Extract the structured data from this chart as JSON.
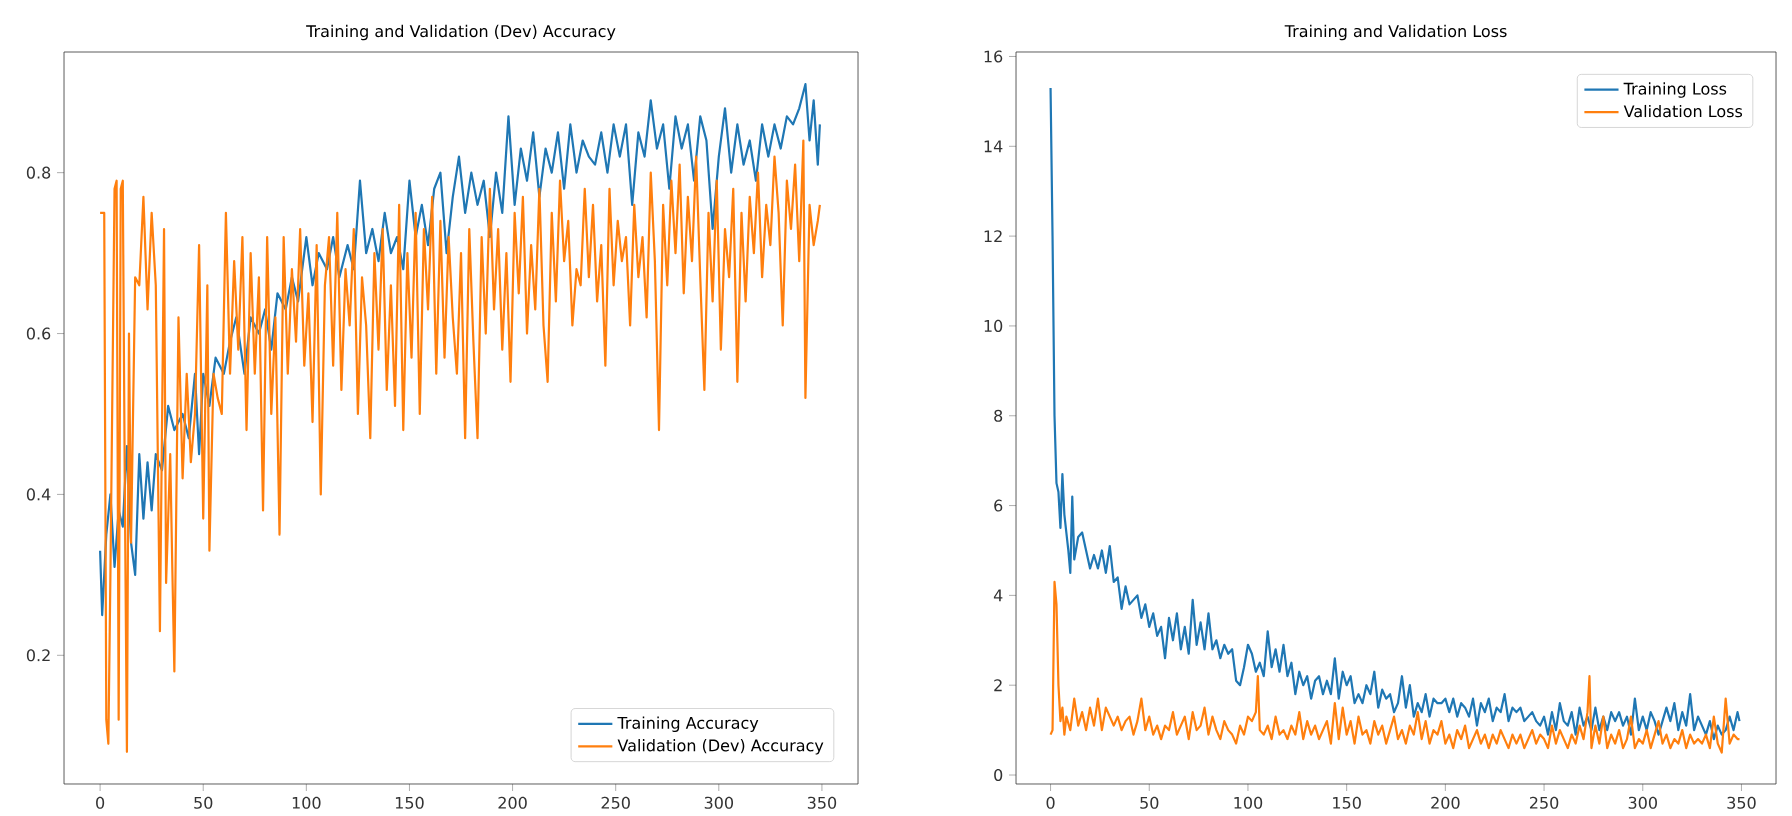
{
  "chart_data": [
    {
      "type": "line",
      "title": "Training and Validation (Dev) Accuracy",
      "xlim": [
        -17.5,
        367.5
      ],
      "ylim": [
        0.04,
        0.95
      ],
      "xticks": [
        0,
        50,
        100,
        150,
        200,
        250,
        300,
        350
      ],
      "yticks": [
        0.2,
        0.4,
        0.6,
        0.8
      ],
      "legend": "bottom right",
      "series": [
        {
          "name": "Training Accuracy",
          "color": "#1f77b4",
          "x": [
            0,
            1,
            3,
            5,
            7,
            9,
            11,
            13,
            15,
            17,
            19,
            21,
            23,
            25,
            27,
            30,
            33,
            36,
            40,
            43,
            46,
            48,
            50,
            53,
            56,
            60,
            63,
            66,
            70,
            73,
            77,
            80,
            83,
            86,
            90,
            93,
            96,
            100,
            103,
            106,
            110,
            113,
            116,
            120,
            123,
            126,
            129,
            132,
            135,
            138,
            141,
            144,
            147,
            150,
            153,
            156,
            159,
            162,
            165,
            168,
            171,
            174,
            177,
            180,
            183,
            186,
            189,
            192,
            195,
            198,
            201,
            204,
            207,
            210,
            213,
            216,
            219,
            222,
            225,
            228,
            231,
            234,
            237,
            240,
            243,
            246,
            249,
            252,
            255,
            258,
            261,
            264,
            267,
            270,
            273,
            276,
            279,
            282,
            285,
            288,
            291,
            294,
            297,
            300,
            303,
            306,
            309,
            312,
            315,
            318,
            321,
            324,
            327,
            330,
            333,
            336,
            339,
            342,
            344,
            346,
            348,
            349
          ],
          "values": [
            0.33,
            0.25,
            0.35,
            0.4,
            0.31,
            0.38,
            0.36,
            0.46,
            0.34,
            0.3,
            0.45,
            0.37,
            0.44,
            0.38,
            0.45,
            0.43,
            0.51,
            0.48,
            0.5,
            0.47,
            0.55,
            0.45,
            0.55,
            0.51,
            0.57,
            0.55,
            0.59,
            0.62,
            0.55,
            0.62,
            0.6,
            0.63,
            0.58,
            0.65,
            0.63,
            0.67,
            0.64,
            0.72,
            0.66,
            0.7,
            0.68,
            0.72,
            0.67,
            0.71,
            0.68,
            0.79,
            0.7,
            0.73,
            0.69,
            0.75,
            0.7,
            0.72,
            0.68,
            0.79,
            0.72,
            0.76,
            0.71,
            0.78,
            0.8,
            0.7,
            0.77,
            0.82,
            0.75,
            0.8,
            0.76,
            0.79,
            0.72,
            0.8,
            0.75,
            0.87,
            0.76,
            0.83,
            0.79,
            0.85,
            0.77,
            0.83,
            0.8,
            0.85,
            0.78,
            0.86,
            0.8,
            0.84,
            0.82,
            0.81,
            0.85,
            0.8,
            0.86,
            0.82,
            0.86,
            0.76,
            0.85,
            0.82,
            0.89,
            0.83,
            0.86,
            0.78,
            0.87,
            0.83,
            0.86,
            0.79,
            0.87,
            0.84,
            0.73,
            0.82,
            0.88,
            0.8,
            0.86,
            0.81,
            0.84,
            0.79,
            0.86,
            0.82,
            0.86,
            0.83,
            0.87,
            0.86,
            0.88,
            0.91,
            0.84,
            0.89,
            0.81,
            0.86
          ]
        },
        {
          "name": "Validation (Dev) Accuracy",
          "color": "#ff7f0e",
          "x": [
            0,
            2,
            3,
            4,
            5,
            7,
            8,
            9,
            10,
            11,
            12,
            13,
            14,
            15,
            17,
            19,
            21,
            23,
            25,
            27,
            29,
            31,
            32,
            34,
            35,
            36,
            38,
            40,
            42,
            44,
            46,
            48,
            50,
            52,
            53,
            55,
            57,
            59,
            61,
            63,
            65,
            67,
            69,
            71,
            73,
            75,
            77,
            79,
            81,
            83,
            85,
            87,
            89,
            91,
            93,
            95,
            97,
            99,
            101,
            103,
            105,
            107,
            109,
            111,
            113,
            115,
            117,
            119,
            121,
            123,
            125,
            127,
            129,
            131,
            133,
            135,
            137,
            139,
            141,
            143,
            145,
            147,
            149,
            151,
            153,
            155,
            157,
            159,
            161,
            163,
            165,
            167,
            169,
            171,
            173,
            175,
            177,
            179,
            181,
            183,
            185,
            187,
            189,
            191,
            193,
            195,
            197,
            199,
            201,
            203,
            205,
            207,
            209,
            211,
            213,
            215,
            217,
            219,
            221,
            223,
            225,
            227,
            229,
            231,
            233,
            235,
            237,
            239,
            241,
            243,
            245,
            247,
            249,
            251,
            253,
            255,
            257,
            259,
            261,
            263,
            265,
            267,
            269,
            271,
            273,
            275,
            277,
            279,
            281,
            283,
            285,
            287,
            289,
            291,
            293,
            295,
            297,
            299,
            301,
            303,
            305,
            307,
            309,
            311,
            313,
            315,
            317,
            319,
            321,
            323,
            325,
            327,
            329,
            331,
            333,
            335,
            337,
            339,
            341,
            342,
            344,
            346,
            348,
            349
          ],
          "values": [
            0.75,
            0.75,
            0.12,
            0.09,
            0.3,
            0.78,
            0.79,
            0.12,
            0.78,
            0.79,
            0.4,
            0.08,
            0.6,
            0.34,
            0.67,
            0.66,
            0.77,
            0.63,
            0.75,
            0.66,
            0.23,
            0.73,
            0.29,
            0.45,
            0.31,
            0.18,
            0.62,
            0.42,
            0.55,
            0.44,
            0.5,
            0.71,
            0.37,
            0.66,
            0.33,
            0.55,
            0.52,
            0.5,
            0.75,
            0.55,
            0.69,
            0.58,
            0.72,
            0.48,
            0.7,
            0.55,
            0.67,
            0.38,
            0.72,
            0.5,
            0.62,
            0.35,
            0.72,
            0.55,
            0.68,
            0.59,
            0.73,
            0.56,
            0.65,
            0.49,
            0.71,
            0.4,
            0.66,
            0.72,
            0.56,
            0.75,
            0.53,
            0.68,
            0.61,
            0.73,
            0.5,
            0.67,
            0.61,
            0.47,
            0.7,
            0.58,
            0.73,
            0.53,
            0.66,
            0.51,
            0.76,
            0.48,
            0.7,
            0.57,
            0.75,
            0.5,
            0.73,
            0.63,
            0.77,
            0.55,
            0.74,
            0.57,
            0.72,
            0.62,
            0.55,
            0.7,
            0.47,
            0.73,
            0.59,
            0.47,
            0.72,
            0.6,
            0.78,
            0.63,
            0.73,
            0.58,
            0.7,
            0.54,
            0.75,
            0.65,
            0.77,
            0.6,
            0.71,
            0.63,
            0.78,
            0.61,
            0.54,
            0.75,
            0.64,
            0.79,
            0.69,
            0.74,
            0.61,
            0.68,
            0.66,
            0.78,
            0.67,
            0.76,
            0.64,
            0.71,
            0.56,
            0.78,
            0.66,
            0.74,
            0.69,
            0.72,
            0.61,
            0.76,
            0.67,
            0.72,
            0.62,
            0.8,
            0.69,
            0.48,
            0.76,
            0.66,
            0.79,
            0.7,
            0.81,
            0.65,
            0.77,
            0.69,
            0.82,
            0.67,
            0.53,
            0.75,
            0.64,
            0.79,
            0.58,
            0.73,
            0.67,
            0.78,
            0.54,
            0.75,
            0.64,
            0.77,
            0.7,
            0.8,
            0.67,
            0.76,
            0.71,
            0.82,
            0.75,
            0.61,
            0.79,
            0.73,
            0.81,
            0.69,
            0.84,
            0.52,
            0.76,
            0.71,
            0.74,
            0.76
          ]
        }
      ]
    },
    {
      "type": "line",
      "title": "Training and Validation Loss",
      "xlim": [
        -17.5,
        367.5
      ],
      "ylim": [
        -0.2,
        16.1
      ],
      "xticks": [
        0,
        50,
        100,
        150,
        200,
        250,
        300,
        350
      ],
      "yticks": [
        0,
        2,
        4,
        6,
        8,
        10,
        12,
        14,
        16
      ],
      "legend": "top right",
      "series": [
        {
          "name": "Training Loss",
          "color": "#1f77b4",
          "x": [
            0,
            1,
            2,
            3,
            4,
            5,
            6,
            7,
            8,
            9,
            10,
            11,
            12,
            14,
            16,
            18,
            20,
            22,
            24,
            26,
            28,
            30,
            32,
            34,
            36,
            38,
            40,
            42,
            44,
            46,
            48,
            50,
            52,
            54,
            56,
            58,
            60,
            62,
            64,
            66,
            68,
            70,
            72,
            74,
            76,
            78,
            80,
            82,
            84,
            86,
            88,
            90,
            92,
            94,
            96,
            98,
            100,
            102,
            104,
            106,
            108,
            110,
            112,
            114,
            116,
            118,
            120,
            122,
            124,
            126,
            128,
            130,
            132,
            134,
            136,
            138,
            140,
            142,
            144,
            146,
            148,
            150,
            152,
            154,
            156,
            158,
            160,
            162,
            164,
            166,
            168,
            170,
            172,
            174,
            176,
            178,
            180,
            182,
            184,
            186,
            188,
            190,
            192,
            194,
            196,
            198,
            200,
            202,
            204,
            206,
            208,
            210,
            212,
            214,
            216,
            218,
            220,
            222,
            224,
            226,
            228,
            230,
            232,
            234,
            236,
            238,
            240,
            242,
            244,
            246,
            248,
            250,
            252,
            254,
            256,
            258,
            260,
            262,
            264,
            266,
            268,
            270,
            272,
            274,
            276,
            278,
            280,
            282,
            284,
            286,
            288,
            290,
            292,
            294,
            296,
            298,
            300,
            302,
            304,
            306,
            308,
            310,
            312,
            314,
            316,
            318,
            320,
            322,
            324,
            326,
            328,
            330,
            332,
            334,
            336,
            338,
            340,
            342,
            344,
            346,
            348,
            349
          ],
          "values": [
            15.3,
            12,
            8,
            6.5,
            6.3,
            5.5,
            6.7,
            5.8,
            5.4,
            5.0,
            4.5,
            6.2,
            4.8,
            5.3,
            5.4,
            5.0,
            4.6,
            4.9,
            4.6,
            5.0,
            4.5,
            5.1,
            4.3,
            4.4,
            3.7,
            4.2,
            3.8,
            3.9,
            4.0,
            3.5,
            3.8,
            3.3,
            3.6,
            3.1,
            3.3,
            2.6,
            3.5,
            3.0,
            3.6,
            2.8,
            3.3,
            2.7,
            3.9,
            2.9,
            3.4,
            2.8,
            3.6,
            2.8,
            3.0,
            2.6,
            2.9,
            2.7,
            2.8,
            2.1,
            2.0,
            2.4,
            2.9,
            2.7,
            2.3,
            2.5,
            2.2,
            3.2,
            2.4,
            2.8,
            2.3,
            2.9,
            2.2,
            2.5,
            1.8,
            2.3,
            2.0,
            2.2,
            1.7,
            2.1,
            2.2,
            1.8,
            2.1,
            1.8,
            2.6,
            1.7,
            2.3,
            2.0,
            2.2,
            1.6,
            1.8,
            1.6,
            2.0,
            1.8,
            2.3,
            1.5,
            1.9,
            1.7,
            1.8,
            1.4,
            1.6,
            2.2,
            1.5,
            2.0,
            1.3,
            1.6,
            1.4,
            1.8,
            1.3,
            1.7,
            1.6,
            1.6,
            1.7,
            1.4,
            1.7,
            1.3,
            1.6,
            1.5,
            1.3,
            1.7,
            1.1,
            1.6,
            1.4,
            1.7,
            1.2,
            1.5,
            1.4,
            1.8,
            1.2,
            1.5,
            1.4,
            1.5,
            1.2,
            1.3,
            1.4,
            1.2,
            1.1,
            1.3,
            0.9,
            1.4,
            1.0,
            1.6,
            1.2,
            1.1,
            1.4,
            0.9,
            1.5,
            1.1,
            1.3,
            1.0,
            1.5,
            1.0,
            1.3,
            1.0,
            1.4,
            1.2,
            1.4,
            1.1,
            1.3,
            0.9,
            1.7,
            1.0,
            1.3,
            1.0,
            1.4,
            1.2,
            0.9,
            1.2,
            1.5,
            1.2,
            1.6,
            1.0,
            1.4,
            1.1,
            1.8,
            1.0,
            1.3,
            1.1,
            0.9,
            1.2,
            0.8,
            1.1,
            0.9,
            1.0,
            1.3,
            1.0,
            1.4,
            1.2
          ]
        },
        {
          "name": "Validation Loss",
          "color": "#ff7f0e",
          "x": [
            0,
            1,
            2,
            3,
            4,
            5,
            6,
            7,
            8,
            10,
            12,
            14,
            16,
            18,
            20,
            22,
            24,
            26,
            28,
            30,
            32,
            34,
            36,
            38,
            40,
            42,
            44,
            46,
            48,
            50,
            52,
            54,
            56,
            58,
            60,
            62,
            64,
            66,
            68,
            70,
            72,
            74,
            76,
            78,
            80,
            82,
            84,
            86,
            88,
            90,
            92,
            94,
            96,
            98,
            100,
            102,
            104,
            105,
            106,
            108,
            110,
            112,
            114,
            116,
            118,
            120,
            122,
            124,
            126,
            128,
            130,
            132,
            134,
            136,
            138,
            140,
            142,
            144,
            146,
            148,
            150,
            152,
            154,
            156,
            158,
            160,
            162,
            164,
            166,
            168,
            170,
            172,
            174,
            176,
            178,
            180,
            182,
            184,
            186,
            188,
            190,
            192,
            194,
            196,
            198,
            200,
            202,
            204,
            206,
            208,
            210,
            212,
            214,
            216,
            218,
            220,
            222,
            224,
            226,
            228,
            230,
            232,
            234,
            236,
            238,
            240,
            242,
            244,
            246,
            248,
            250,
            252,
            254,
            256,
            258,
            260,
            262,
            264,
            266,
            268,
            270,
            272,
            273,
            274,
            276,
            278,
            280,
            282,
            284,
            286,
            288,
            290,
            292,
            294,
            296,
            298,
            300,
            302,
            304,
            306,
            308,
            310,
            312,
            314,
            316,
            318,
            320,
            322,
            324,
            326,
            328,
            330,
            332,
            334,
            336,
            338,
            340,
            342,
            344,
            346,
            348,
            349
          ],
          "values": [
            0.9,
            1.0,
            4.3,
            3.8,
            2.0,
            1.2,
            1.5,
            0.9,
            1.3,
            1.0,
            1.7,
            1.1,
            1.4,
            1.0,
            1.5,
            1.1,
            1.7,
            1.0,
            1.5,
            1.3,
            1.1,
            1.3,
            1.0,
            1.2,
            1.3,
            0.9,
            1.2,
            1.7,
            1.0,
            1.3,
            0.9,
            1.1,
            0.8,
            1.1,
            1.0,
            1.4,
            0.9,
            1.1,
            1.3,
            0.8,
            1.4,
            1.0,
            1.1,
            1.5,
            0.9,
            1.3,
            1.0,
            0.8,
            1.2,
            1.0,
            0.9,
            0.7,
            1.1,
            0.9,
            1.3,
            1.2,
            1.4,
            2.2,
            1.0,
            0.9,
            1.1,
            0.8,
            1.3,
            0.9,
            1.0,
            0.8,
            1.1,
            0.9,
            1.4,
            0.8,
            1.2,
            0.9,
            1.1,
            0.8,
            1.0,
            1.2,
            0.7,
            1.6,
            0.8,
            1.5,
            0.9,
            1.2,
            0.7,
            1.3,
            0.9,
            1.0,
            0.7,
            1.2,
            0.9,
            1.1,
            0.7,
            1.0,
            1.3,
            0.8,
            1.0,
            0.7,
            1.1,
            0.9,
            1.4,
            0.8,
            1.2,
            0.7,
            1.0,
            0.9,
            1.2,
            0.7,
            0.9,
            0.6,
            1.0,
            0.8,
            1.1,
            0.6,
            0.8,
            1.0,
            0.7,
            0.9,
            0.6,
            0.9,
            0.7,
            1.0,
            0.8,
            0.6,
            0.9,
            0.7,
            0.9,
            0.6,
            0.8,
            1.0,
            0.7,
            0.9,
            0.8,
            0.6,
            1.1,
            0.7,
            1.0,
            0.8,
            0.6,
            0.9,
            0.7,
            1.1,
            0.8,
            1.4,
            2.2,
            0.6,
            1.1,
            0.7,
            1.3,
            0.6,
            0.9,
            0.7,
            1.0,
            0.6,
            0.8,
            1.3,
            0.6,
            0.8,
            0.7,
            1.0,
            0.6,
            0.9,
            1.2,
            0.7,
            0.9,
            0.6,
            0.8,
            0.7,
            1.0,
            0.6,
            0.9,
            0.7,
            0.8,
            0.7,
            0.9,
            0.6,
            1.3,
            0.7,
            0.5,
            1.7,
            0.7,
            0.9,
            0.8,
            0.8
          ]
        }
      ]
    }
  ]
}
